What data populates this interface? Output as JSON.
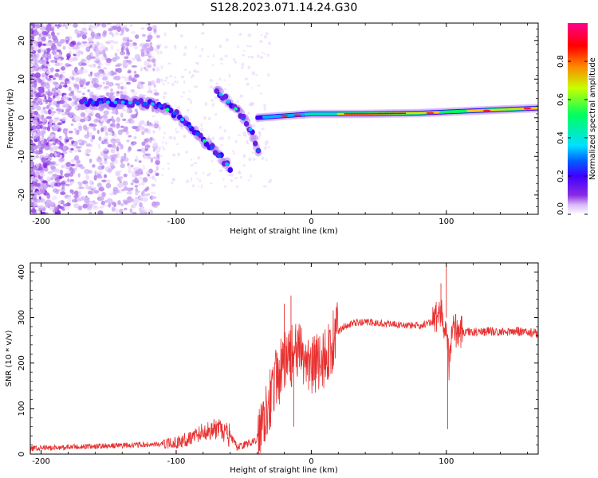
{
  "figure_title": "S128.2023.071.14.24.G30",
  "chart_data": [
    {
      "type": "heatmap",
      "xlabel": "Height of straight line (km)",
      "ylabel": "Frequency (Hz)",
      "xlim": [
        -208,
        168
      ],
      "ylim": [
        -25,
        24.5
      ],
      "xticks": [
        -200,
        -100,
        0,
        100
      ],
      "xtick_labels": [
        "-200",
        "-100",
        "0",
        "100"
      ],
      "yticks": [
        -20,
        -10,
        0,
        10,
        20
      ],
      "ytick_labels": [
        "-20",
        "-10",
        "0",
        "10",
        "20"
      ],
      "colorbar": {
        "label": "Normalized spectral amplitude",
        "range": [
          0,
          1
        ],
        "ticks": [
          0,
          0.2,
          0.4,
          0.6,
          0.8
        ],
        "tick_labels": [
          "0.0",
          "0.2",
          "0.4",
          "0.6",
          "0.8"
        ],
        "colors": [
          "#ffffff",
          "#d8b8f8",
          "#8a2be2",
          "#3f00ff",
          "#0060ff",
          "#00e0ff",
          "#00ff60",
          "#c8ff00",
          "#ff8000",
          "#ff0000",
          "#ff0090"
        ]
      },
      "features": [
        {
          "desc": "dominant ridge",
          "points": [
            [
              -170,
              4
            ],
            [
              -140,
              4
            ],
            [
              -115,
              3.5
            ],
            [
              -100,
              1
            ],
            [
              -85,
              -4
            ],
            [
              -70,
              -9
            ],
            [
              -60,
              -13
            ]
          ]
        },
        {
          "desc": "secondary ridge",
          "points": [
            [
              -70,
              7
            ],
            [
              -55,
              2
            ],
            [
              -45,
              -3
            ],
            [
              -38,
              -10
            ]
          ]
        },
        {
          "desc": "steady ridge",
          "points": [
            [
              -40,
              0
            ],
            [
              -20,
              0.5
            ],
            [
              0,
              1
            ],
            [
              40,
              1
            ],
            [
              80,
              1.2
            ],
            [
              120,
              1.8
            ],
            [
              168,
              2.5
            ]
          ]
        }
      ],
      "grid": false
    },
    {
      "type": "line",
      "xlabel": "Height of straight line (km)",
      "ylabel": "SNR (10 * v/v)",
      "xlim": [
        -208,
        168
      ],
      "ylim": [
        0,
        420
      ],
      "xticks": [
        -200,
        -100,
        0,
        100
      ],
      "xtick_labels": [
        "-200",
        "-100",
        "0",
        "100"
      ],
      "yticks": [
        0,
        100,
        200,
        300,
        400
      ],
      "ytick_labels": [
        "0",
        "100",
        "200",
        "300",
        "400"
      ],
      "line_color": "#e83030",
      "grid": false,
      "x": [
        -208,
        -190,
        -170,
        -150,
        -130,
        -110,
        -100,
        -90,
        -80,
        -70,
        -60,
        -55,
        -50,
        -40,
        -35,
        -30,
        -25,
        -20,
        -15,
        -10,
        -5,
        0,
        5,
        10,
        15,
        20,
        25,
        30,
        40,
        50,
        60,
        70,
        80,
        90,
        95,
        98,
        100,
        102,
        105,
        110,
        120,
        130,
        140,
        150,
        160,
        168
      ],
      "y": [
        12,
        14,
        16,
        18,
        20,
        22,
        25,
        35,
        50,
        55,
        40,
        15,
        20,
        30,
        90,
        130,
        170,
        200,
        215,
        220,
        210,
        195,
        200,
        210,
        240,
        270,
        282,
        287,
        290,
        288,
        285,
        283,
        282,
        290,
        310,
        290,
        300,
        200,
        275,
        270,
        268,
        270,
        268,
        270,
        268,
        265
      ],
      "spikes": [
        [
          -15,
          348
        ],
        [
          -13,
          60
        ],
        [
          -20,
          330
        ],
        [
          -30,
          60
        ],
        [
          100,
          412
        ],
        [
          101,
          55
        ],
        [
          96,
          375
        ]
      ]
    }
  ]
}
